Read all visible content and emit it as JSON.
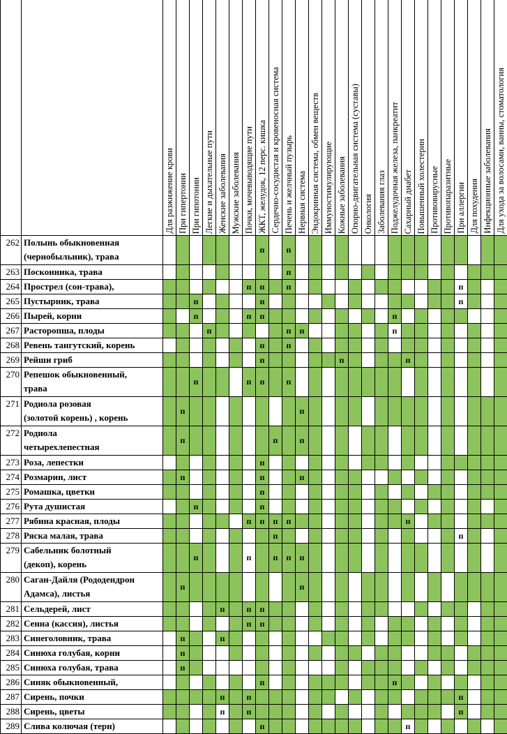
{
  "columns": [
    "Для разжижение крови",
    "При гипертонии",
    "При гипотонии",
    "Легкие и дыхательные пути",
    "Женские заболевания",
    "Мужские заболевания",
    "Почки, мочевыводящие пути",
    "ЖКТ, желудок, 12 перс. кишка",
    "Сердечно-сосудистая и кровеносная система",
    "Печень и желчный пузырь",
    "Нервная система",
    "Эндокринная система, обмен веществ",
    "Иммуностимулирующие",
    "Кожные заболевания",
    "Опорно-двигательная система (суставы)",
    "Онкология",
    "Заболевания глаз",
    "Поджелудочная железа, панкреатит",
    "Сахарный диабет",
    "Повышенный холестерин",
    "Противовирусные",
    "Противопаразитные",
    "При аллергии",
    "Для похудения",
    "Инфекционные заболевания",
    "Для ухода за волосами, ванны, стоматология"
  ],
  "fill_color": "#8dc35c",
  "rows": [
    {
      "number": 262,
      "name": [
        "Полынь обыкновенная",
        "(чернобыльник), трава"
      ],
      "fills": [
        false,
        true,
        false,
        true,
        true,
        false,
        false,
        true,
        false,
        true,
        false,
        true,
        false,
        true,
        false,
        false,
        false,
        true,
        true,
        true,
        false,
        true,
        true,
        false,
        true,
        true
      ],
      "marks": {
        "7": "п",
        "9": "п"
      }
    },
    {
      "number": 263,
      "name": [
        "Посконника, трава"
      ],
      "fills": [
        false,
        true,
        false,
        false,
        true,
        false,
        false,
        true,
        false,
        true,
        false,
        true,
        false,
        true,
        false,
        true,
        false,
        true,
        true,
        true,
        false,
        true,
        false,
        true,
        true,
        true
      ],
      "marks": {
        "9": "п"
      }
    },
    {
      "number": 264,
      "name": [
        "Прострел (сон-трава),"
      ],
      "fills": [
        true,
        true,
        false,
        true,
        false,
        false,
        true,
        true,
        true,
        true,
        false,
        true,
        false,
        false,
        true,
        false,
        true,
        true,
        false,
        false,
        true,
        true,
        false,
        true,
        false,
        true
      ],
      "marks": {
        "6": "п",
        "7": "п",
        "9": "п",
        "22": "п"
      }
    },
    {
      "number": 265,
      "name": [
        "Пустырник, трава"
      ],
      "fills": [
        true,
        true,
        true,
        false,
        true,
        false,
        false,
        true,
        false,
        true,
        false,
        false,
        true,
        false,
        true,
        false,
        false,
        true,
        true,
        false,
        true,
        true,
        false,
        true,
        false,
        true
      ],
      "marks": {
        "2": "п",
        "7": "п",
        "22": "п"
      }
    },
    {
      "number": 266,
      "name": [
        "Пырей, корни"
      ],
      "fills": [
        true,
        false,
        true,
        false,
        true,
        false,
        true,
        true,
        true,
        true,
        false,
        true,
        false,
        true,
        false,
        true,
        false,
        true,
        false,
        true,
        false,
        true,
        true,
        false,
        false,
        true
      ],
      "marks": {
        "2": "п",
        "6": "п",
        "7": "п",
        "17": "п"
      }
    },
    {
      "number": 267,
      "name": [
        "Расторопша, плоды"
      ],
      "fills": [
        true,
        true,
        false,
        true,
        true,
        false,
        true,
        false,
        true,
        true,
        true,
        false,
        false,
        true,
        true,
        false,
        true,
        false,
        true,
        true,
        false,
        true,
        false,
        true,
        false,
        true
      ],
      "marks": {
        "3": "п",
        "9": "п",
        "10": "п",
        "17": "п"
      }
    },
    {
      "number": 268,
      "name": [
        "Ревень тангутский, корень"
      ],
      "fills": [
        false,
        true,
        false,
        true,
        false,
        true,
        false,
        true,
        true,
        true,
        false,
        true,
        false,
        true,
        true,
        false,
        true,
        false,
        true,
        true,
        false,
        true,
        false,
        true,
        false,
        true
      ],
      "marks": {
        "7": "п",
        "9": "п"
      }
    },
    {
      "number": 269,
      "name": [
        "Рейши гриб"
      ],
      "fills": [
        true,
        true,
        false,
        true,
        false,
        true,
        false,
        true,
        true,
        true,
        false,
        true,
        true,
        true,
        true,
        false,
        true,
        true,
        true,
        true,
        false,
        true,
        false,
        true,
        false,
        true
      ],
      "marks": {
        "7": "п",
        "13": "п",
        "18": "п"
      }
    },
    {
      "number": 270,
      "name": [
        "Репешок обыкновенный,",
        "трава"
      ],
      "fills": [
        true,
        true,
        true,
        true,
        true,
        false,
        true,
        true,
        true,
        true,
        false,
        true,
        false,
        true,
        true,
        true,
        true,
        true,
        false,
        true,
        false,
        true,
        false,
        true,
        false,
        true
      ],
      "marks": {
        "2": "п",
        "6": "п",
        "7": "п",
        "9": "п"
      }
    },
    {
      "number": 271,
      "name": [
        "Родиола розовая",
        "(золотой корень) , корень"
      ],
      "fills": [
        true,
        true,
        true,
        true,
        false,
        true,
        false,
        true,
        false,
        true,
        true,
        true,
        false,
        true,
        true,
        false,
        true,
        true,
        true,
        true,
        false,
        true,
        false,
        true,
        true,
        true
      ],
      "marks": {
        "1": "п",
        "10": "п"
      }
    },
    {
      "number": 272,
      "name": [
        "Родиола",
        "четырехлепестная"
      ],
      "fills": [
        true,
        true,
        true,
        true,
        false,
        true,
        false,
        true,
        true,
        true,
        true,
        true,
        false,
        true,
        false,
        true,
        true,
        false,
        true,
        true,
        false,
        true,
        false,
        true,
        true,
        true
      ],
      "marks": {
        "1": "п",
        "8": "п",
        "10": "п"
      }
    },
    {
      "number": 273,
      "name": [
        "Роза, лепестки"
      ],
      "fills": [
        false,
        true,
        false,
        true,
        false,
        true,
        false,
        true,
        false,
        true,
        false,
        true,
        false,
        true,
        false,
        true,
        true,
        false,
        true,
        false,
        false,
        true,
        true,
        true,
        true,
        true
      ],
      "marks": {
        "7": "п"
      }
    },
    {
      "number": 274,
      "name": [
        "Розмарин, лист"
      ],
      "fills": [
        true,
        true,
        false,
        true,
        false,
        true,
        false,
        true,
        false,
        true,
        true,
        true,
        false,
        true,
        true,
        false,
        false,
        true,
        false,
        true,
        false,
        true,
        false,
        true,
        true,
        true
      ],
      "marks": {
        "1": "п",
        "7": "п",
        "10": "п"
      }
    },
    {
      "number": 275,
      "name": [
        "Ромашка, цветки"
      ],
      "fills": [
        true,
        true,
        false,
        true,
        false,
        true,
        false,
        true,
        false,
        true,
        false,
        true,
        false,
        true,
        true,
        false,
        true,
        false,
        true,
        false,
        true,
        true,
        false,
        true,
        true,
        true
      ],
      "marks": {
        "7": "п"
      }
    },
    {
      "number": 276,
      "name": [
        "Рута душистая"
      ],
      "fills": [
        false,
        true,
        true,
        true,
        false,
        true,
        false,
        true,
        false,
        true,
        false,
        true,
        false,
        true,
        true,
        false,
        true,
        true,
        false,
        true,
        false,
        true,
        false,
        true,
        false,
        true
      ],
      "marks": {
        "2": "п",
        "7": "п"
      }
    },
    {
      "number": 277,
      "name": [
        "Рябина красная, плоды"
      ],
      "fills": [
        true,
        true,
        false,
        true,
        true,
        false,
        true,
        true,
        true,
        true,
        true,
        true,
        false,
        true,
        true,
        false,
        true,
        true,
        true,
        false,
        true,
        true,
        false,
        true,
        true,
        true
      ],
      "marks": {
        "6": "п",
        "7": "п",
        "8": "п",
        "9": "п",
        "18": "п"
      }
    },
    {
      "number": 278,
      "name": [
        "Ряска малая, трава"
      ],
      "fills": [
        true,
        true,
        false,
        true,
        false,
        true,
        false,
        true,
        true,
        true,
        false,
        true,
        false,
        true,
        true,
        false,
        true,
        false,
        true,
        false,
        false,
        true,
        false,
        true,
        false,
        true
      ],
      "marks": {
        "8": "п",
        "22": "п"
      }
    },
    {
      "number": 279,
      "name": [
        "Сабельник болотный",
        "(декоп), корень"
      ],
      "fills": [
        true,
        true,
        true,
        true,
        false,
        true,
        false,
        true,
        true,
        true,
        true,
        true,
        false,
        true,
        true,
        false,
        true,
        false,
        true,
        true,
        false,
        true,
        false,
        true,
        false,
        true
      ],
      "marks": {
        "2": "п",
        "6": "п",
        "8": "п",
        "9": "п",
        "10": "п"
      }
    },
    {
      "number": 280,
      "name": [
        "Саган-Дайля (Рододендрон",
        "Адамса), листья"
      ],
      "fills": [
        true,
        true,
        true,
        true,
        true,
        true,
        false,
        true,
        false,
        true,
        true,
        true,
        false,
        true,
        false,
        true,
        true,
        false,
        true,
        false,
        true,
        false,
        true,
        true,
        true,
        true
      ],
      "marks": {
        "1": "п",
        "10": "п"
      }
    },
    {
      "number": 281,
      "name": [
        "Сельдерей, лист"
      ],
      "fills": [
        true,
        true,
        false,
        true,
        true,
        true,
        true,
        true,
        true,
        true,
        false,
        true,
        false,
        true,
        false,
        true,
        true,
        false,
        false,
        true,
        false,
        true,
        true,
        false,
        true,
        true
      ],
      "marks": {
        "4": "п",
        "6": "п",
        "7": "п"
      }
    },
    {
      "number": 282,
      "name": [
        "Сенна (кассия), листья"
      ],
      "fills": [
        true,
        true,
        false,
        true,
        false,
        true,
        true,
        true,
        true,
        true,
        false,
        true,
        false,
        true,
        false,
        true,
        false,
        true,
        true,
        false,
        true,
        false,
        true,
        false,
        true,
        true
      ],
      "marks": {
        "6": "п",
        "7": "п"
      }
    },
    {
      "number": 283,
      "name": [
        "Синеголовник, трава"
      ],
      "fills": [
        false,
        true,
        true,
        false,
        true,
        true,
        false,
        true,
        false,
        true,
        false,
        false,
        true,
        true,
        false,
        true,
        false,
        true,
        true,
        false,
        true,
        false,
        true,
        false,
        true,
        true
      ],
      "marks": {
        "1": "п",
        "4": "п"
      }
    },
    {
      "number": 284,
      "name": [
        "Синюха голубая, корни"
      ],
      "fills": [
        false,
        true,
        true,
        false,
        false,
        true,
        false,
        true,
        false,
        true,
        false,
        true,
        false,
        true,
        true,
        false,
        true,
        true,
        false,
        false,
        true,
        true,
        false,
        true,
        true,
        true
      ],
      "marks": {
        "1": "п"
      }
    },
    {
      "number": 285,
      "name": [
        "Синюха голубая, трава"
      ],
      "fills": [
        false,
        true,
        true,
        false,
        false,
        false,
        false,
        true,
        false,
        true,
        false,
        false,
        false,
        true,
        false,
        true,
        true,
        true,
        false,
        true,
        false,
        true,
        false,
        true,
        true,
        true
      ],
      "marks": {
        "1": "п"
      }
    },
    {
      "number": 286,
      "name": [
        "Синяк обыкновенный,"
      ],
      "fills": [
        false,
        true,
        false,
        true,
        false,
        true,
        false,
        true,
        false,
        true,
        false,
        true,
        true,
        true,
        false,
        true,
        true,
        true,
        true,
        false,
        true,
        false,
        true,
        false,
        true,
        true
      ],
      "marks": {
        "7": "п",
        "17": "п"
      }
    },
    {
      "number": 287,
      "name": [
        "Сирень, почки"
      ],
      "fills": [
        true,
        true,
        true,
        true,
        true,
        true,
        true,
        true,
        true,
        true,
        false,
        true,
        true,
        false,
        true,
        false,
        true,
        true,
        false,
        true,
        true,
        true,
        true,
        false,
        true,
        true
      ],
      "marks": {
        "4": "п",
        "6": "п",
        "22": "п"
      }
    },
    {
      "number": 288,
      "name": [
        "Сирень, цветы"
      ],
      "fills": [
        true,
        true,
        false,
        true,
        false,
        true,
        true,
        true,
        true,
        true,
        false,
        true,
        false,
        true,
        false,
        false,
        true,
        false,
        true,
        true,
        true,
        false,
        true,
        false,
        true,
        true
      ],
      "marks": {
        "4": "п",
        "6": "п",
        "22": "п"
      }
    },
    {
      "number": 289,
      "name": [
        "Слива колючая (терн)"
      ],
      "fills": [
        false,
        true,
        false,
        true,
        false,
        true,
        false,
        true,
        true,
        true,
        false,
        true,
        true,
        true,
        true,
        false,
        true,
        true,
        false,
        true,
        false,
        true,
        false,
        true,
        false,
        true
      ],
      "marks": {
        "7": "п",
        "18": "п"
      }
    }
  ]
}
